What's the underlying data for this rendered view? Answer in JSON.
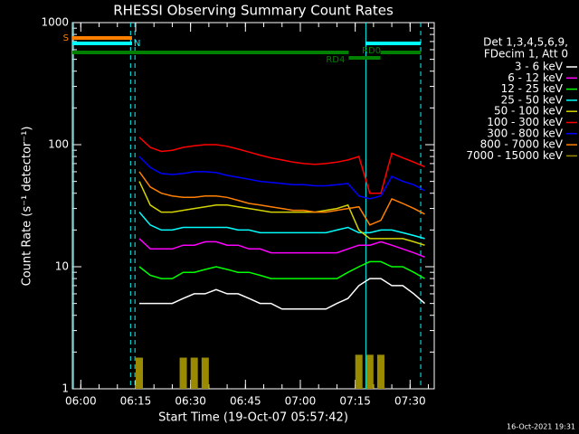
{
  "chart_data": {
    "type": "line",
    "title": "RHESSI Observing Summary Count Rates",
    "x_label": "Start Time (19-Oct-07 05:57:42)",
    "y_label": "Count Rate (s⁻¹ detector⁻¹)",
    "legend_header": [
      "Det 1,3,4,5,6,9,",
      "FDecim 1, Att 0"
    ],
    "footer": "16-Oct-2021 19:31",
    "log_y": true,
    "xlim": [
      357.7,
      456.6
    ],
    "ylim": [
      1,
      1000
    ],
    "xticks": [
      {
        "value": 360,
        "label": "06:00"
      },
      {
        "value": 375,
        "label": "06:15"
      },
      {
        "value": 390,
        "label": "06:30"
      },
      {
        "value": 405,
        "label": "06:45"
      },
      {
        "value": 420,
        "label": "07:00"
      },
      {
        "value": 435,
        "label": "07:15"
      },
      {
        "value": 450,
        "label": "07:30"
      }
    ],
    "yticks": [
      1,
      10,
      100,
      1000
    ],
    "x": [
      376,
      379,
      382,
      385,
      388,
      391,
      394,
      397,
      400,
      403,
      406,
      409,
      412,
      415,
      418,
      421,
      424,
      427,
      430,
      433,
      436,
      439,
      442,
      445,
      448,
      451,
      454
    ],
    "series": [
      {
        "name": "3 - 6 keV",
        "color": "#ffffff",
        "values": [
          5,
          5,
          5,
          5,
          5.5,
          6,
          6,
          6.5,
          6,
          6,
          5.5,
          5,
          5,
          4.5,
          4.5,
          4.5,
          4.5,
          4.5,
          5,
          5.5,
          7,
          8,
          8,
          7,
          7,
          6,
          5
        ]
      },
      {
        "name": "6 - 12 keV",
        "color": "#ff00ff",
        "values": [
          17,
          14,
          14,
          14,
          15,
          15,
          16,
          16,
          15,
          15,
          14,
          14,
          13,
          13,
          13,
          13,
          13,
          13,
          13,
          14,
          15,
          15,
          16,
          15,
          14,
          13,
          12
        ]
      },
      {
        "name": "12 - 25 keV",
        "color": "#00ff00",
        "values": [
          10,
          8.5,
          8,
          8,
          9,
          9,
          9.5,
          10,
          9.5,
          9,
          9,
          8.5,
          8,
          8,
          8,
          8,
          8,
          8,
          8,
          9,
          10,
          11,
          11,
          10,
          10,
          9,
          8
        ]
      },
      {
        "name": "25 - 50 keV",
        "color": "#00ffff",
        "values": [
          28,
          22,
          20,
          20,
          21,
          21,
          21,
          21,
          21,
          20,
          20,
          19,
          19,
          19,
          19,
          19,
          19,
          19,
          20,
          21,
          19,
          19,
          20,
          20,
          19,
          18,
          17
        ]
      },
      {
        "name": "50 - 100 keV",
        "color": "#d4d400",
        "values": [
          50,
          32,
          28,
          28,
          29,
          30,
          31,
          32,
          32,
          31,
          30,
          29,
          28,
          28,
          28,
          28,
          28,
          29,
          30,
          32,
          20,
          17,
          17,
          17,
          17,
          16,
          15
        ]
      },
      {
        "name": "100 - 300 keV",
        "color": "#ff0000",
        "values": [
          115,
          95,
          88,
          90,
          95,
          98,
          100,
          100,
          97,
          92,
          87,
          82,
          78,
          75,
          72,
          70,
          69,
          70,
          72,
          75,
          80,
          40,
          40,
          85,
          78,
          72,
          66
        ]
      },
      {
        "name": "300 - 800 keV",
        "color": "#0000ff",
        "values": [
          80,
          65,
          58,
          57,
          58,
          60,
          60,
          59,
          56,
          54,
          52,
          50,
          49,
          48,
          47,
          47,
          46,
          46,
          47,
          48,
          38,
          36,
          38,
          55,
          50,
          47,
          42
        ]
      },
      {
        "name": "800 - 7000 keV",
        "color": "#ff8000",
        "values": [
          60,
          45,
          40,
          38,
          37,
          37,
          38,
          38,
          37,
          35,
          33,
          32,
          31,
          30,
          29,
          29,
          28,
          28,
          29,
          30,
          31,
          22,
          24,
          36,
          33,
          30,
          27
        ]
      },
      {
        "name": "7000 - 15000 keV",
        "color": "#9a8a00",
        "bars": true,
        "values": [
          1.8,
          null,
          null,
          null,
          1.8,
          1.8,
          1.8,
          null,
          null,
          null,
          null,
          null,
          null,
          null,
          null,
          null,
          null,
          null,
          null,
          null,
          1.9,
          1.9,
          1.9,
          null,
          null,
          null,
          null
        ]
      }
    ],
    "vlines": [
      {
        "x": 358,
        "color": "#00ffff",
        "dashed": false
      },
      {
        "x": 373.6,
        "color": "#00ffff",
        "dashed": true
      },
      {
        "x": 374.8,
        "color": "#00ffff",
        "dashed": true
      },
      {
        "x": 437.9,
        "color": "#00ffff",
        "dashed": false
      },
      {
        "x": 452.9,
        "color": "#00ffff",
        "dashed": true
      }
    ],
    "flags": [
      {
        "name": "S",
        "color": "#ff8000",
        "start": 357.7,
        "end": 374
      },
      {
        "name": "N",
        "color": "#00ffff",
        "start": 357.7,
        "end": 374
      },
      {
        "color": "#00ffff",
        "start": 437.9,
        "end": 452.9
      },
      {
        "color": "#008000",
        "start": 357.7,
        "end": 433.2
      },
      {
        "name": "RD0",
        "color": "#008000",
        "start": 441.9,
        "end": 452.9
      },
      {
        "name": "RD4",
        "color": "#008000",
        "start": 433.2,
        "end": 441.9
      }
    ]
  }
}
